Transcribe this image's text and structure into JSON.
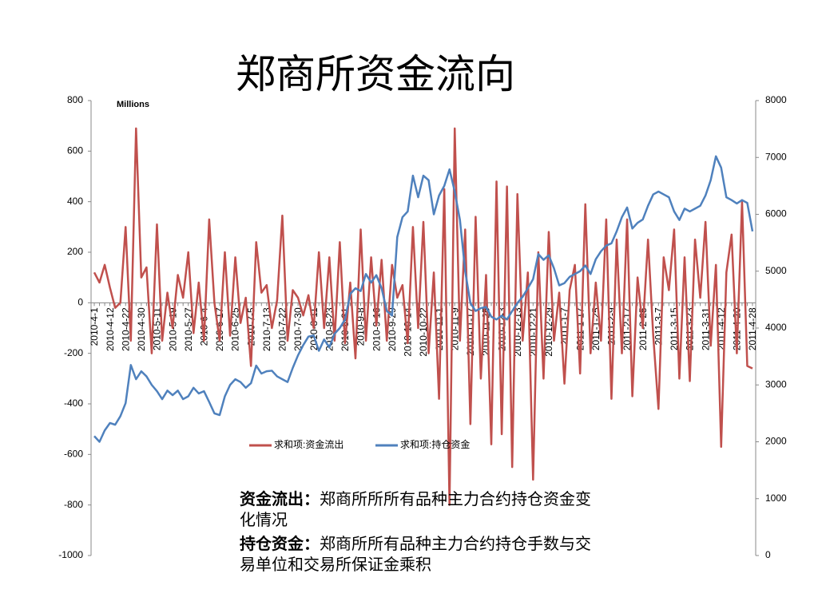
{
  "chart_data": {
    "type": "line",
    "title": "郑商所资金流向",
    "y_unit": "Millions",
    "categories": [
      "2010-4-1",
      null,
      null,
      "2010-4-12",
      null,
      null,
      "2010-4-22",
      null,
      null,
      "2010-4-30",
      null,
      null,
      "2010-5-11",
      null,
      null,
      "2010-5-19",
      null,
      null,
      "2010-5-27",
      null,
      null,
      "2010-6-4",
      null,
      null,
      "2010-6-17",
      null,
      null,
      "2010-6-25",
      null,
      null,
      "2010-7-5",
      null,
      null,
      "2010-7-13",
      null,
      null,
      "2010-7-22",
      null,
      null,
      "2010-7-30",
      null,
      null,
      "2010-8-11",
      null,
      null,
      "2010-8-23",
      null,
      null,
      "2010-8-31",
      null,
      null,
      "2010-9-8",
      null,
      null,
      "2010-9-16",
      null,
      null,
      "2010-9-29",
      null,
      null,
      "2010-10-14",
      null,
      null,
      "2010-10-22",
      null,
      null,
      "2010-11-1",
      null,
      null,
      "2010-11-9",
      null,
      null,
      "2010-11-17",
      null,
      null,
      "2010-11-25",
      null,
      null,
      "2010-12-3",
      null,
      null,
      "2010-12-13",
      null,
      null,
      "2010-12-21",
      null,
      null,
      "2010-12-29",
      null,
      null,
      "2011-1-7",
      null,
      null,
      "2011-1-17",
      null,
      null,
      "2011-1-25",
      null,
      null,
      "2011-2-9",
      null,
      null,
      "2011-2-17",
      null,
      null,
      "2011-2-25",
      null,
      null,
      "2011-3-7",
      null,
      null,
      "2011-3-15",
      null,
      null,
      "2011-3-23",
      null,
      null,
      "2011-3-31",
      null,
      null,
      "2011-4-12",
      null,
      null,
      "2011-4-20",
      null,
      null,
      "2011-4-28"
    ],
    "series": [
      {
        "name": "求和项:资金流出",
        "color": "#c0504d",
        "axis": "y",
        "values": [
          120,
          80,
          150,
          60,
          -20,
          0,
          300,
          -150,
          690,
          100,
          140,
          -200,
          310,
          -150,
          40,
          -100,
          110,
          20,
          200,
          -120,
          80,
          -150,
          330,
          0,
          -150,
          200,
          -130,
          180,
          -80,
          20,
          -250,
          240,
          40,
          70,
          -100,
          10,
          345,
          -150,
          50,
          20,
          -50,
          30,
          -100,
          200,
          -100,
          180,
          -150,
          240,
          -160,
          80,
          -220,
          290,
          -150,
          180,
          -90,
          170,
          -150,
          150,
          20,
          70,
          -160,
          300,
          -100,
          320,
          -200,
          120,
          -380,
          450,
          -800,
          690,
          -150,
          290,
          -480,
          340,
          -300,
          110,
          -560,
          480,
          -520,
          460,
          -650,
          430,
          -150,
          120,
          -700,
          200,
          -300,
          280,
          -150,
          40,
          -320,
          50,
          150,
          -280,
          390,
          -200,
          80,
          -150,
          330,
          -380,
          250,
          -200,
          330,
          -370,
          100,
          -100,
          250,
          -130,
          -420,
          180,
          50,
          290,
          -300,
          180,
          -310,
          250,
          20,
          320,
          -170,
          150,
          -570,
          120,
          270,
          -200,
          400,
          -250,
          -260
        ]
      },
      {
        "name": "求和项:持仓资金",
        "color": "#4f81bd",
        "axis": "y2",
        "values": [
          2100,
          2000,
          2200,
          2330,
          2300,
          2450,
          2680,
          3350,
          3100,
          3240,
          3150,
          3000,
          2890,
          2750,
          2900,
          2820,
          2900,
          2750,
          2800,
          2950,
          2850,
          2890,
          2700,
          2500,
          2470,
          2800,
          3000,
          3100,
          3050,
          2950,
          3030,
          3340,
          3200,
          3240,
          3250,
          3150,
          3100,
          3050,
          3300,
          3520,
          3700,
          3850,
          3870,
          3600,
          3800,
          3660,
          3900,
          4000,
          4150,
          4600,
          4700,
          4650,
          4950,
          4800,
          4930,
          4700,
          4300,
          4220,
          5600,
          5950,
          6050,
          6680,
          6300,
          6680,
          6600,
          6000,
          6330,
          6500,
          6790,
          6400,
          5900,
          5000,
          4440,
          4300,
          4350,
          4370,
          4200,
          4150,
          4220,
          4150,
          4300,
          4440,
          4550,
          4700,
          4860,
          5300,
          5200,
          5280,
          5050,
          4750,
          4790,
          4900,
          4950,
          5000,
          5100,
          4950,
          5210,
          5350,
          5450,
          5490,
          5700,
          5950,
          6120,
          5750,
          5850,
          5910,
          6150,
          6350,
          6400,
          6350,
          6300,
          6050,
          5900,
          6100,
          6050,
          6100,
          6150,
          6330,
          6600,
          7020,
          6820,
          6300,
          6250,
          6190,
          6250,
          6200,
          5700
        ]
      }
    ],
    "ylim": [
      -1000,
      800
    ],
    "yticks": [
      -1000,
      -800,
      -600,
      -400,
      -200,
      0,
      200,
      400,
      600,
      800
    ],
    "y2lim": [
      0,
      8000
    ],
    "y2ticks": [
      0,
      1000,
      2000,
      3000,
      4000,
      5000,
      6000,
      7000,
      8000
    ],
    "grid": false,
    "annotations": [
      {
        "label": "资金流出：",
        "text": "郑商所所所有品种主力合约持仓资金变化情况"
      },
      {
        "label": "持仓资金：",
        "text": "郑商所所有品种主力合约持仓手数与交易单位和交易所保证金乘积"
      }
    ]
  }
}
